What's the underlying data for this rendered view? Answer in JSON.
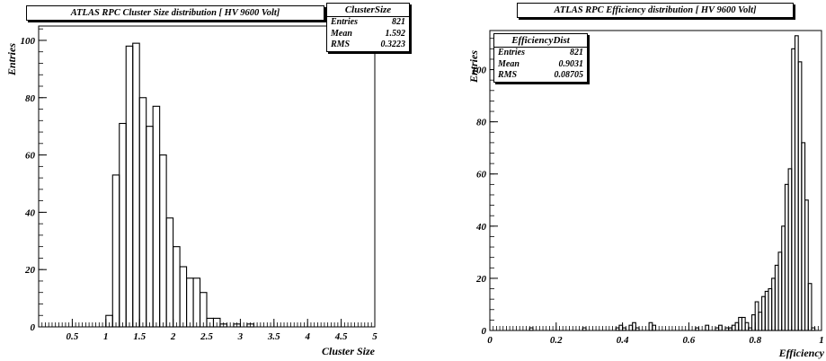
{
  "chart_data": [
    {
      "type": "bar",
      "title": "ATLAS RPC Cluster Size distribution  [ HV 9600 Volt]",
      "xlabel": "Cluster Size",
      "ylabel": "Entries",
      "xlim": [
        0,
        5
      ],
      "ylim": [
        0,
        105
      ],
      "xticks": [
        "0.5",
        "1",
        "1.5",
        "2",
        "2.5",
        "3",
        "3.5",
        "4",
        "4.5",
        "5"
      ],
      "yticks": [
        "0",
        "20",
        "40",
        "60",
        "80",
        "100"
      ],
      "grid": false,
      "stats": {
        "name": "ClusterSize",
        "rows": [
          {
            "label": "Entries",
            "value": "821"
          },
          {
            "label": "Mean",
            "value": "1.592"
          },
          {
            "label": "RMS",
            "value": "0.3223"
          }
        ]
      },
      "bin_width": 0.1,
      "bins_x": [
        0.0,
        0.1,
        0.2,
        0.3,
        0.4,
        0.5,
        0.6,
        0.7,
        0.8,
        0.9,
        1.0,
        1.1,
        1.2,
        1.3,
        1.4,
        1.5,
        1.6,
        1.7,
        1.8,
        1.9,
        2.0,
        2.1,
        2.2,
        2.3,
        2.4,
        2.5,
        2.6,
        2.7,
        2.8,
        2.9,
        3.0,
        3.1,
        3.2,
        3.3,
        3.4,
        3.5,
        3.6,
        3.7,
        3.8,
        3.9,
        4.0,
        4.1,
        4.2,
        4.3,
        4.4,
        4.5,
        4.6,
        4.7,
        4.8,
        4.9
      ],
      "values": [
        0,
        0,
        0,
        0,
        0,
        0,
        0,
        0,
        0,
        0,
        4,
        53,
        71,
        98,
        99,
        80,
        70,
        77,
        60,
        38,
        28,
        21,
        17,
        17,
        12,
        3,
        3,
        1,
        0,
        1,
        0,
        1,
        0,
        0,
        0,
        0,
        0,
        0,
        0,
        0,
        0,
        0,
        0,
        0,
        0,
        0,
        0,
        0,
        0,
        0
      ]
    },
    {
      "type": "bar",
      "title": "ATLAS RPC Efficiency distribution  [ HV 9600  Volt]",
      "xlabel": "Efficiency",
      "ylabel": "Entries",
      "xlim": [
        0,
        1
      ],
      "ylim": [
        0,
        115
      ],
      "xticks": [
        "0",
        "0.2",
        "0.4",
        "0.6",
        "0.8",
        "1"
      ],
      "yticks": [
        "0",
        "20",
        "40",
        "60",
        "80",
        "100"
      ],
      "grid": false,
      "stats": {
        "name": "EfficiencyDist",
        "rows": [
          {
            "label": "Entries",
            "value": "821"
          },
          {
            "label": "Mean",
            "value": "0.9031"
          },
          {
            "label": "RMS",
            "value": "0.08705"
          }
        ]
      },
      "bin_width": 0.01,
      "bins_x": [
        0.0,
        0.01,
        0.02,
        0.03,
        0.04,
        0.05,
        0.06,
        0.07,
        0.08,
        0.09,
        0.1,
        0.11,
        0.12,
        0.13,
        0.14,
        0.15,
        0.16,
        0.17,
        0.18,
        0.19,
        0.2,
        0.21,
        0.22,
        0.23,
        0.24,
        0.25,
        0.26,
        0.27,
        0.28,
        0.29,
        0.3,
        0.31,
        0.32,
        0.33,
        0.34,
        0.35,
        0.36,
        0.37,
        0.38,
        0.39,
        0.4,
        0.41,
        0.42,
        0.43,
        0.44,
        0.45,
        0.46,
        0.47,
        0.48,
        0.49,
        0.5,
        0.51,
        0.52,
        0.53,
        0.54,
        0.55,
        0.56,
        0.57,
        0.58,
        0.59,
        0.6,
        0.61,
        0.62,
        0.63,
        0.64,
        0.65,
        0.66,
        0.67,
        0.68,
        0.69,
        0.7,
        0.71,
        0.72,
        0.73,
        0.74,
        0.75,
        0.76,
        0.77,
        0.78,
        0.79,
        0.8,
        0.81,
        0.82,
        0.83,
        0.84,
        0.85,
        0.86,
        0.87,
        0.88,
        0.89,
        0.9,
        0.91,
        0.92,
        0.93,
        0.94,
        0.95,
        0.96,
        0.97,
        0.98,
        0.99
      ],
      "values": [
        0,
        0,
        0,
        0,
        0,
        0,
        0,
        0,
        0,
        0,
        0,
        0,
        1,
        0,
        0,
        0,
        0,
        0,
        0,
        0,
        0,
        0,
        0,
        0,
        0,
        0,
        0,
        0,
        1,
        0,
        0,
        0,
        0,
        0,
        0,
        0,
        0,
        0,
        1,
        2,
        1,
        0,
        2,
        3,
        1,
        0,
        0,
        0,
        3,
        2,
        0,
        0,
        0,
        0,
        0,
        0,
        0,
        0,
        0,
        0,
        0,
        0,
        1,
        0,
        0,
        2,
        0,
        0,
        1,
        2,
        0,
        1,
        1,
        2,
        3,
        5,
        5,
        3,
        1,
        6,
        11,
        7,
        13,
        15,
        16,
        20,
        25,
        30,
        40,
        56,
        62,
        108,
        113,
        103,
        72,
        50,
        18,
        1,
        0,
        0
      ]
    }
  ]
}
